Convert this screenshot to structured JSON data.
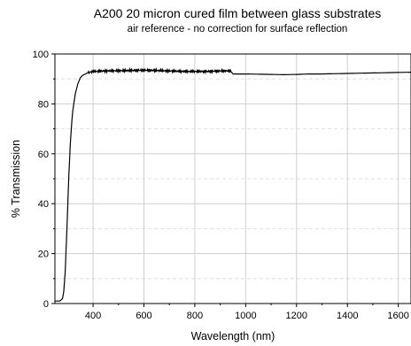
{
  "chart_data": {
    "type": "line",
    "title": "A200 20 micron cured film between glass substrates",
    "subtitle": "air reference - no correction for surface reflection",
    "xlabel": "Wavelength (nm)",
    "ylabel": "% Transmission",
    "xlim": [
      250,
      1650
    ],
    "ylim": [
      0,
      100
    ],
    "x_ticks": [
      400,
      600,
      800,
      1000,
      1200,
      1400,
      1600
    ],
    "y_ticks": [
      0,
      20,
      40,
      60,
      80,
      100
    ],
    "grid": true,
    "legend": "none",
    "line_color": "#000000",
    "series": [
      {
        "x": [
          250,
          260,
          270,
          280,
          285,
          290,
          295,
          300,
          305,
          310,
          315,
          320,
          330,
          340,
          350,
          360,
          370,
          380,
          400,
          450,
          500,
          550,
          600,
          650,
          700,
          750,
          800,
          850,
          900,
          940,
          950,
          1000,
          1050,
          1100,
          1150,
          1200,
          1250,
          1300,
          1350,
          1400,
          1450,
          1500,
          1550,
          1600,
          1650
        ],
        "y": [
          1,
          1,
          1,
          2,
          5,
          12,
          24,
          38,
          52,
          63,
          71,
          77,
          84,
          88,
          90.5,
          91.5,
          92,
          92.5,
          93,
          93.2,
          93.3,
          93.4,
          93.5,
          93.4,
          93.2,
          93,
          93,
          93,
          93.2,
          93.3,
          92,
          92,
          91.9,
          91.8,
          91.7,
          91.8,
          92,
          92,
          92.1,
          92.2,
          92.3,
          92.4,
          92.5,
          92.6,
          92.7
        ]
      }
    ]
  }
}
